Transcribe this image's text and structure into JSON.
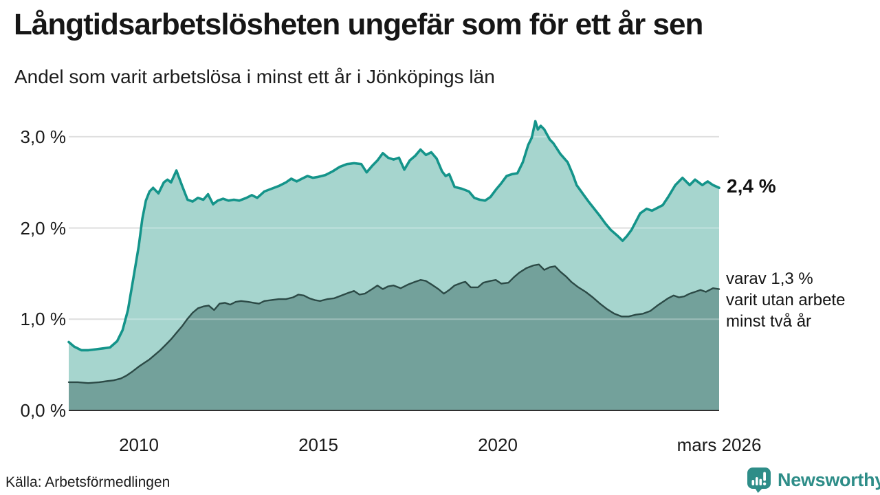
{
  "header": {
    "title": "Långtidsarbetslösheten ungefär som för ett år sen",
    "subtitle": "Andel som varit arbetslösa i minst ett år i Jönköpings län"
  },
  "chart_data": {
    "type": "area",
    "title": "Långtidsarbetslösheten ungefär som för ett år sen",
    "subtitle": "Andel som varit arbetslösa i minst ett år i Jönköpings län",
    "legend_position": "right-edge-labels",
    "grid": true,
    "colors": {
      "series1_line": "#14948A",
      "series1_fill": "#A6D5CE",
      "series2_line": "#2C4A46",
      "series2_fill": "#73A19B",
      "gridline": "#D2D2D2",
      "gridline_overlay": "rgba(255,255,255,0.30)",
      "baseline": "#2F2F2F"
    },
    "x_axis": {
      "range": [
        2008.05,
        2026.17
      ],
      "ticks": [
        {
          "label": "2010",
          "value": 2010
        },
        {
          "label": "2015",
          "value": 2015
        },
        {
          "label": "2020",
          "value": 2020
        },
        {
          "label": "mars 2026",
          "value": 2026.0
        }
      ]
    },
    "y_axis": {
      "range": [
        0,
        3.2
      ],
      "unit": "%",
      "gridline_values": [
        1,
        2,
        3
      ],
      "ticks": [
        {
          "label": "3,0 %",
          "value": 3
        },
        {
          "label": "2,0 %",
          "value": 2
        },
        {
          "label": "1,0 %",
          "value": 1
        },
        {
          "label": "0,0 %",
          "value": 0
        }
      ]
    },
    "end_labels": {
      "primary": "2,4 %",
      "secondary": "varav 1,3 %\nvarit utan arbete\nminst två år"
    },
    "series": [
      {
        "name": "Andel som varit arbetslösa minst ett år",
        "end_value_pct": 2.4,
        "points": [
          [
            2008.05,
            0.75
          ],
          [
            2008.2,
            0.7
          ],
          [
            2008.4,
            0.66
          ],
          [
            2008.6,
            0.66
          ],
          [
            2008.8,
            0.67
          ],
          [
            2009.0,
            0.68
          ],
          [
            2009.2,
            0.69
          ],
          [
            2009.4,
            0.76
          ],
          [
            2009.55,
            0.88
          ],
          [
            2009.7,
            1.1
          ],
          [
            2009.85,
            1.45
          ],
          [
            2010.0,
            1.8
          ],
          [
            2010.1,
            2.1
          ],
          [
            2010.2,
            2.3
          ],
          [
            2010.3,
            2.4
          ],
          [
            2010.4,
            2.44
          ],
          [
            2010.55,
            2.38
          ],
          [
            2010.7,
            2.5
          ],
          [
            2010.8,
            2.53
          ],
          [
            2010.9,
            2.5
          ],
          [
            2011.05,
            2.63
          ],
          [
            2011.2,
            2.47
          ],
          [
            2011.36,
            2.31
          ],
          [
            2011.5,
            2.29
          ],
          [
            2011.65,
            2.33
          ],
          [
            2011.8,
            2.31
          ],
          [
            2011.93,
            2.37
          ],
          [
            2012.07,
            2.26
          ],
          [
            2012.2,
            2.3
          ],
          [
            2012.35,
            2.32
          ],
          [
            2012.5,
            2.3
          ],
          [
            2012.65,
            2.31
          ],
          [
            2012.8,
            2.3
          ],
          [
            2013.0,
            2.33
          ],
          [
            2013.15,
            2.36
          ],
          [
            2013.3,
            2.33
          ],
          [
            2013.5,
            2.4
          ],
          [
            2013.7,
            2.43
          ],
          [
            2013.9,
            2.46
          ],
          [
            2014.1,
            2.5
          ],
          [
            2014.25,
            2.54
          ],
          [
            2014.4,
            2.51
          ],
          [
            2014.55,
            2.54
          ],
          [
            2014.7,
            2.57
          ],
          [
            2014.85,
            2.55
          ],
          [
            2015.0,
            2.56
          ],
          [
            2015.2,
            2.58
          ],
          [
            2015.4,
            2.62
          ],
          [
            2015.6,
            2.67
          ],
          [
            2015.8,
            2.7
          ],
          [
            2016.0,
            2.71
          ],
          [
            2016.2,
            2.7
          ],
          [
            2016.35,
            2.61
          ],
          [
            2016.5,
            2.68
          ],
          [
            2016.65,
            2.74
          ],
          [
            2016.8,
            2.82
          ],
          [
            2016.95,
            2.77
          ],
          [
            2017.1,
            2.75
          ],
          [
            2017.25,
            2.77
          ],
          [
            2017.4,
            2.64
          ],
          [
            2017.55,
            2.74
          ],
          [
            2017.7,
            2.79
          ],
          [
            2017.85,
            2.86
          ],
          [
            2018.0,
            2.8
          ],
          [
            2018.15,
            2.83
          ],
          [
            2018.3,
            2.76
          ],
          [
            2018.45,
            2.62
          ],
          [
            2018.55,
            2.57
          ],
          [
            2018.65,
            2.59
          ],
          [
            2018.8,
            2.45
          ],
          [
            2019.0,
            2.43
          ],
          [
            2019.2,
            2.4
          ],
          [
            2019.35,
            2.33
          ],
          [
            2019.5,
            2.31
          ],
          [
            2019.65,
            2.3
          ],
          [
            2019.8,
            2.34
          ],
          [
            2019.95,
            2.42
          ],
          [
            2020.1,
            2.49
          ],
          [
            2020.25,
            2.57
          ],
          [
            2020.4,
            2.59
          ],
          [
            2020.55,
            2.6
          ],
          [
            2020.7,
            2.72
          ],
          [
            2020.85,
            2.91
          ],
          [
            2020.95,
            2.99
          ],
          [
            2021.05,
            3.17
          ],
          [
            2021.12,
            3.08
          ],
          [
            2021.2,
            3.12
          ],
          [
            2021.3,
            3.08
          ],
          [
            2021.45,
            2.97
          ],
          [
            2021.55,
            2.93
          ],
          [
            2021.75,
            2.81
          ],
          [
            2021.95,
            2.72
          ],
          [
            2022.1,
            2.58
          ],
          [
            2022.2,
            2.47
          ],
          [
            2022.4,
            2.36
          ],
          [
            2022.55,
            2.28
          ],
          [
            2022.85,
            2.13
          ],
          [
            2023.0,
            2.05
          ],
          [
            2023.15,
            1.98
          ],
          [
            2023.35,
            1.91
          ],
          [
            2023.48,
            1.86
          ],
          [
            2023.6,
            1.91
          ],
          [
            2023.73,
            1.98
          ],
          [
            2023.85,
            2.07
          ],
          [
            2023.97,
            2.16
          ],
          [
            2024.15,
            2.21
          ],
          [
            2024.3,
            2.19
          ],
          [
            2024.45,
            2.22
          ],
          [
            2024.6,
            2.25
          ],
          [
            2024.75,
            2.34
          ],
          [
            2024.95,
            2.47
          ],
          [
            2025.15,
            2.55
          ],
          [
            2025.35,
            2.47
          ],
          [
            2025.5,
            2.53
          ],
          [
            2025.7,
            2.47
          ],
          [
            2025.85,
            2.51
          ],
          [
            2026.0,
            2.47
          ],
          [
            2026.17,
            2.44
          ]
        ]
      },
      {
        "name": "varav utan arbete minst två år",
        "end_value_pct": 1.3,
        "points": [
          [
            2008.05,
            0.31
          ],
          [
            2008.3,
            0.31
          ],
          [
            2008.6,
            0.3
          ],
          [
            2008.9,
            0.31
          ],
          [
            2009.1,
            0.32
          ],
          [
            2009.3,
            0.33
          ],
          [
            2009.5,
            0.35
          ],
          [
            2009.65,
            0.38
          ],
          [
            2009.8,
            0.42
          ],
          [
            2010.0,
            0.48
          ],
          [
            2010.15,
            0.52
          ],
          [
            2010.3,
            0.56
          ],
          [
            2010.45,
            0.61
          ],
          [
            2010.6,
            0.66
          ],
          [
            2010.75,
            0.72
          ],
          [
            2010.9,
            0.78
          ],
          [
            2011.05,
            0.85
          ],
          [
            2011.2,
            0.92
          ],
          [
            2011.35,
            1.0
          ],
          [
            2011.5,
            1.07
          ],
          [
            2011.65,
            1.12
          ],
          [
            2011.8,
            1.14
          ],
          [
            2011.95,
            1.15
          ],
          [
            2012.1,
            1.1
          ],
          [
            2012.25,
            1.17
          ],
          [
            2012.4,
            1.18
          ],
          [
            2012.55,
            1.16
          ],
          [
            2012.7,
            1.19
          ],
          [
            2012.85,
            1.2
          ],
          [
            2013.05,
            1.19
          ],
          [
            2013.2,
            1.18
          ],
          [
            2013.35,
            1.17
          ],
          [
            2013.5,
            1.2
          ],
          [
            2013.7,
            1.21
          ],
          [
            2013.9,
            1.22
          ],
          [
            2014.1,
            1.22
          ],
          [
            2014.3,
            1.24
          ],
          [
            2014.45,
            1.27
          ],
          [
            2014.6,
            1.26
          ],
          [
            2014.75,
            1.23
          ],
          [
            2014.9,
            1.21
          ],
          [
            2015.05,
            1.2
          ],
          [
            2015.25,
            1.22
          ],
          [
            2015.45,
            1.23
          ],
          [
            2015.65,
            1.26
          ],
          [
            2015.85,
            1.29
          ],
          [
            2016.0,
            1.31
          ],
          [
            2016.15,
            1.27
          ],
          [
            2016.3,
            1.28
          ],
          [
            2016.5,
            1.33
          ],
          [
            2016.65,
            1.37
          ],
          [
            2016.8,
            1.33
          ],
          [
            2016.95,
            1.36
          ],
          [
            2017.1,
            1.37
          ],
          [
            2017.3,
            1.34
          ],
          [
            2017.5,
            1.38
          ],
          [
            2017.7,
            1.41
          ],
          [
            2017.85,
            1.43
          ],
          [
            2018.0,
            1.42
          ],
          [
            2018.2,
            1.37
          ],
          [
            2018.35,
            1.33
          ],
          [
            2018.5,
            1.28
          ],
          [
            2018.65,
            1.32
          ],
          [
            2018.8,
            1.37
          ],
          [
            2019.0,
            1.4
          ],
          [
            2019.1,
            1.41
          ],
          [
            2019.25,
            1.35
          ],
          [
            2019.45,
            1.35
          ],
          [
            2019.6,
            1.4
          ],
          [
            2019.8,
            1.42
          ],
          [
            2019.95,
            1.43
          ],
          [
            2020.1,
            1.39
          ],
          [
            2020.3,
            1.4
          ],
          [
            2020.45,
            1.46
          ],
          [
            2020.6,
            1.51
          ],
          [
            2020.8,
            1.56
          ],
          [
            2021.0,
            1.59
          ],
          [
            2021.15,
            1.6
          ],
          [
            2021.3,
            1.54
          ],
          [
            2021.45,
            1.57
          ],
          [
            2021.6,
            1.58
          ],
          [
            2021.75,
            1.52
          ],
          [
            2021.9,
            1.47
          ],
          [
            2022.05,
            1.41
          ],
          [
            2022.25,
            1.35
          ],
          [
            2022.45,
            1.3
          ],
          [
            2022.65,
            1.24
          ],
          [
            2022.85,
            1.17
          ],
          [
            2023.05,
            1.11
          ],
          [
            2023.25,
            1.06
          ],
          [
            2023.45,
            1.03
          ],
          [
            2023.65,
            1.03
          ],
          [
            2023.85,
            1.05
          ],
          [
            2024.05,
            1.06
          ],
          [
            2024.25,
            1.09
          ],
          [
            2024.45,
            1.15
          ],
          [
            2024.6,
            1.19
          ],
          [
            2024.75,
            1.23
          ],
          [
            2024.9,
            1.26
          ],
          [
            2025.05,
            1.24
          ],
          [
            2025.2,
            1.25
          ],
          [
            2025.35,
            1.28
          ],
          [
            2025.5,
            1.3
          ],
          [
            2025.65,
            1.32
          ],
          [
            2025.8,
            1.3
          ],
          [
            2026.0,
            1.34
          ],
          [
            2026.17,
            1.33
          ]
        ]
      }
    ]
  },
  "footer": {
    "source": "Källa: Arbetsförmedlingen",
    "brand": {
      "name": "Newsworthy",
      "color": "#2E8D88"
    }
  }
}
